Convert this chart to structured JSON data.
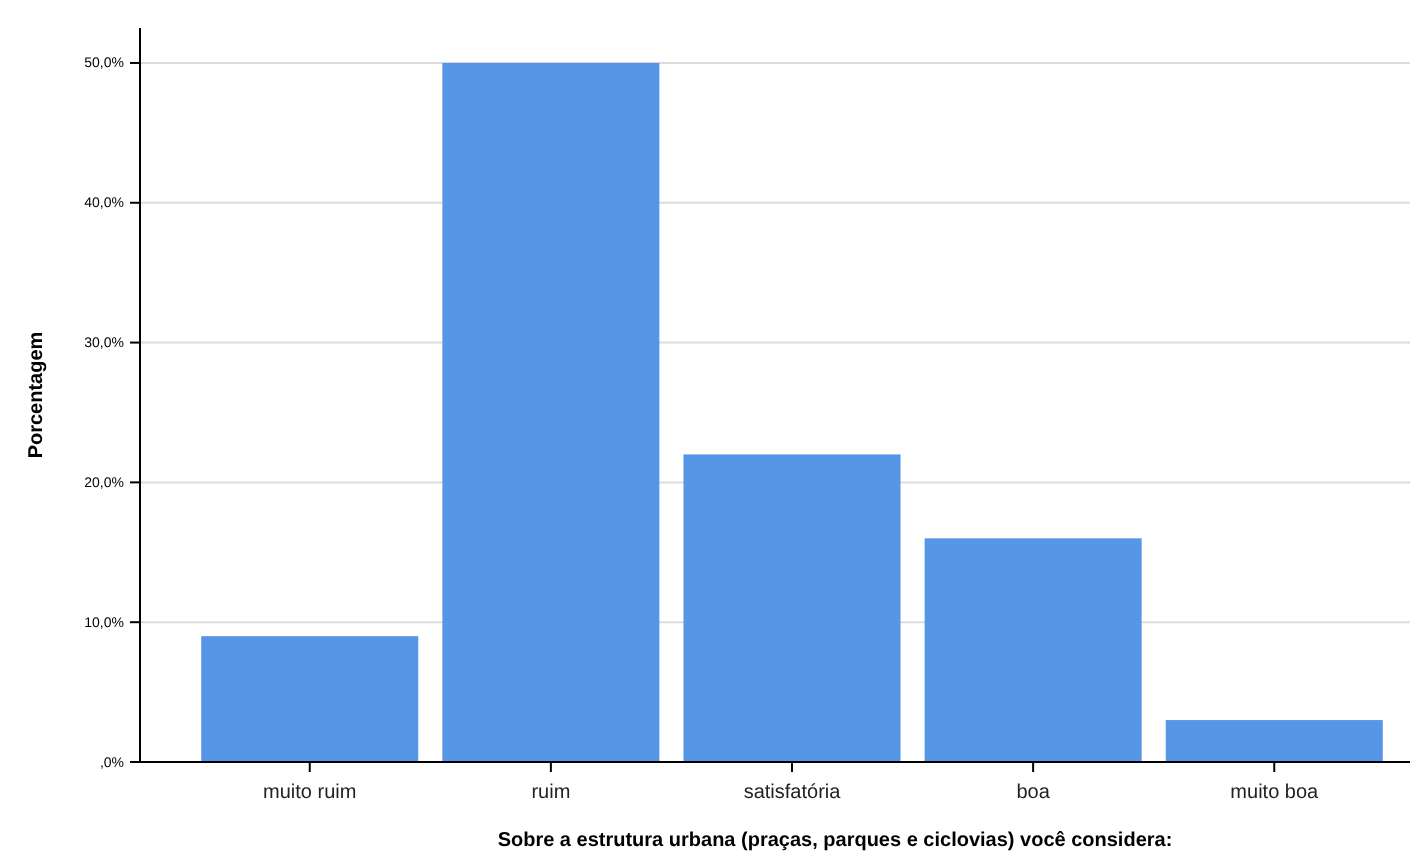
{
  "chart_data": {
    "type": "bar",
    "xlabel": "Sobre a estrutura urbana (praças, parques e ciclovias) você considera:",
    "ylabel": "Porcentagem",
    "categories": [
      "muito ruim",
      "ruim",
      "satisfatória",
      "boa",
      "muito boa"
    ],
    "values": [
      9,
      50,
      22,
      16,
      3
    ],
    "color": "#5596e6",
    "ylim": [
      0,
      52.5
    ],
    "yticks": [
      {
        "value": 0,
        "label": ",0%"
      },
      {
        "value": 10,
        "label": "10,0%"
      },
      {
        "value": 20,
        "label": "20,0%"
      },
      {
        "value": 30,
        "label": "30,0%"
      },
      {
        "value": 40,
        "label": "40,0%"
      },
      {
        "value": 50,
        "label": "50,0%"
      }
    ],
    "grid": "y"
  }
}
